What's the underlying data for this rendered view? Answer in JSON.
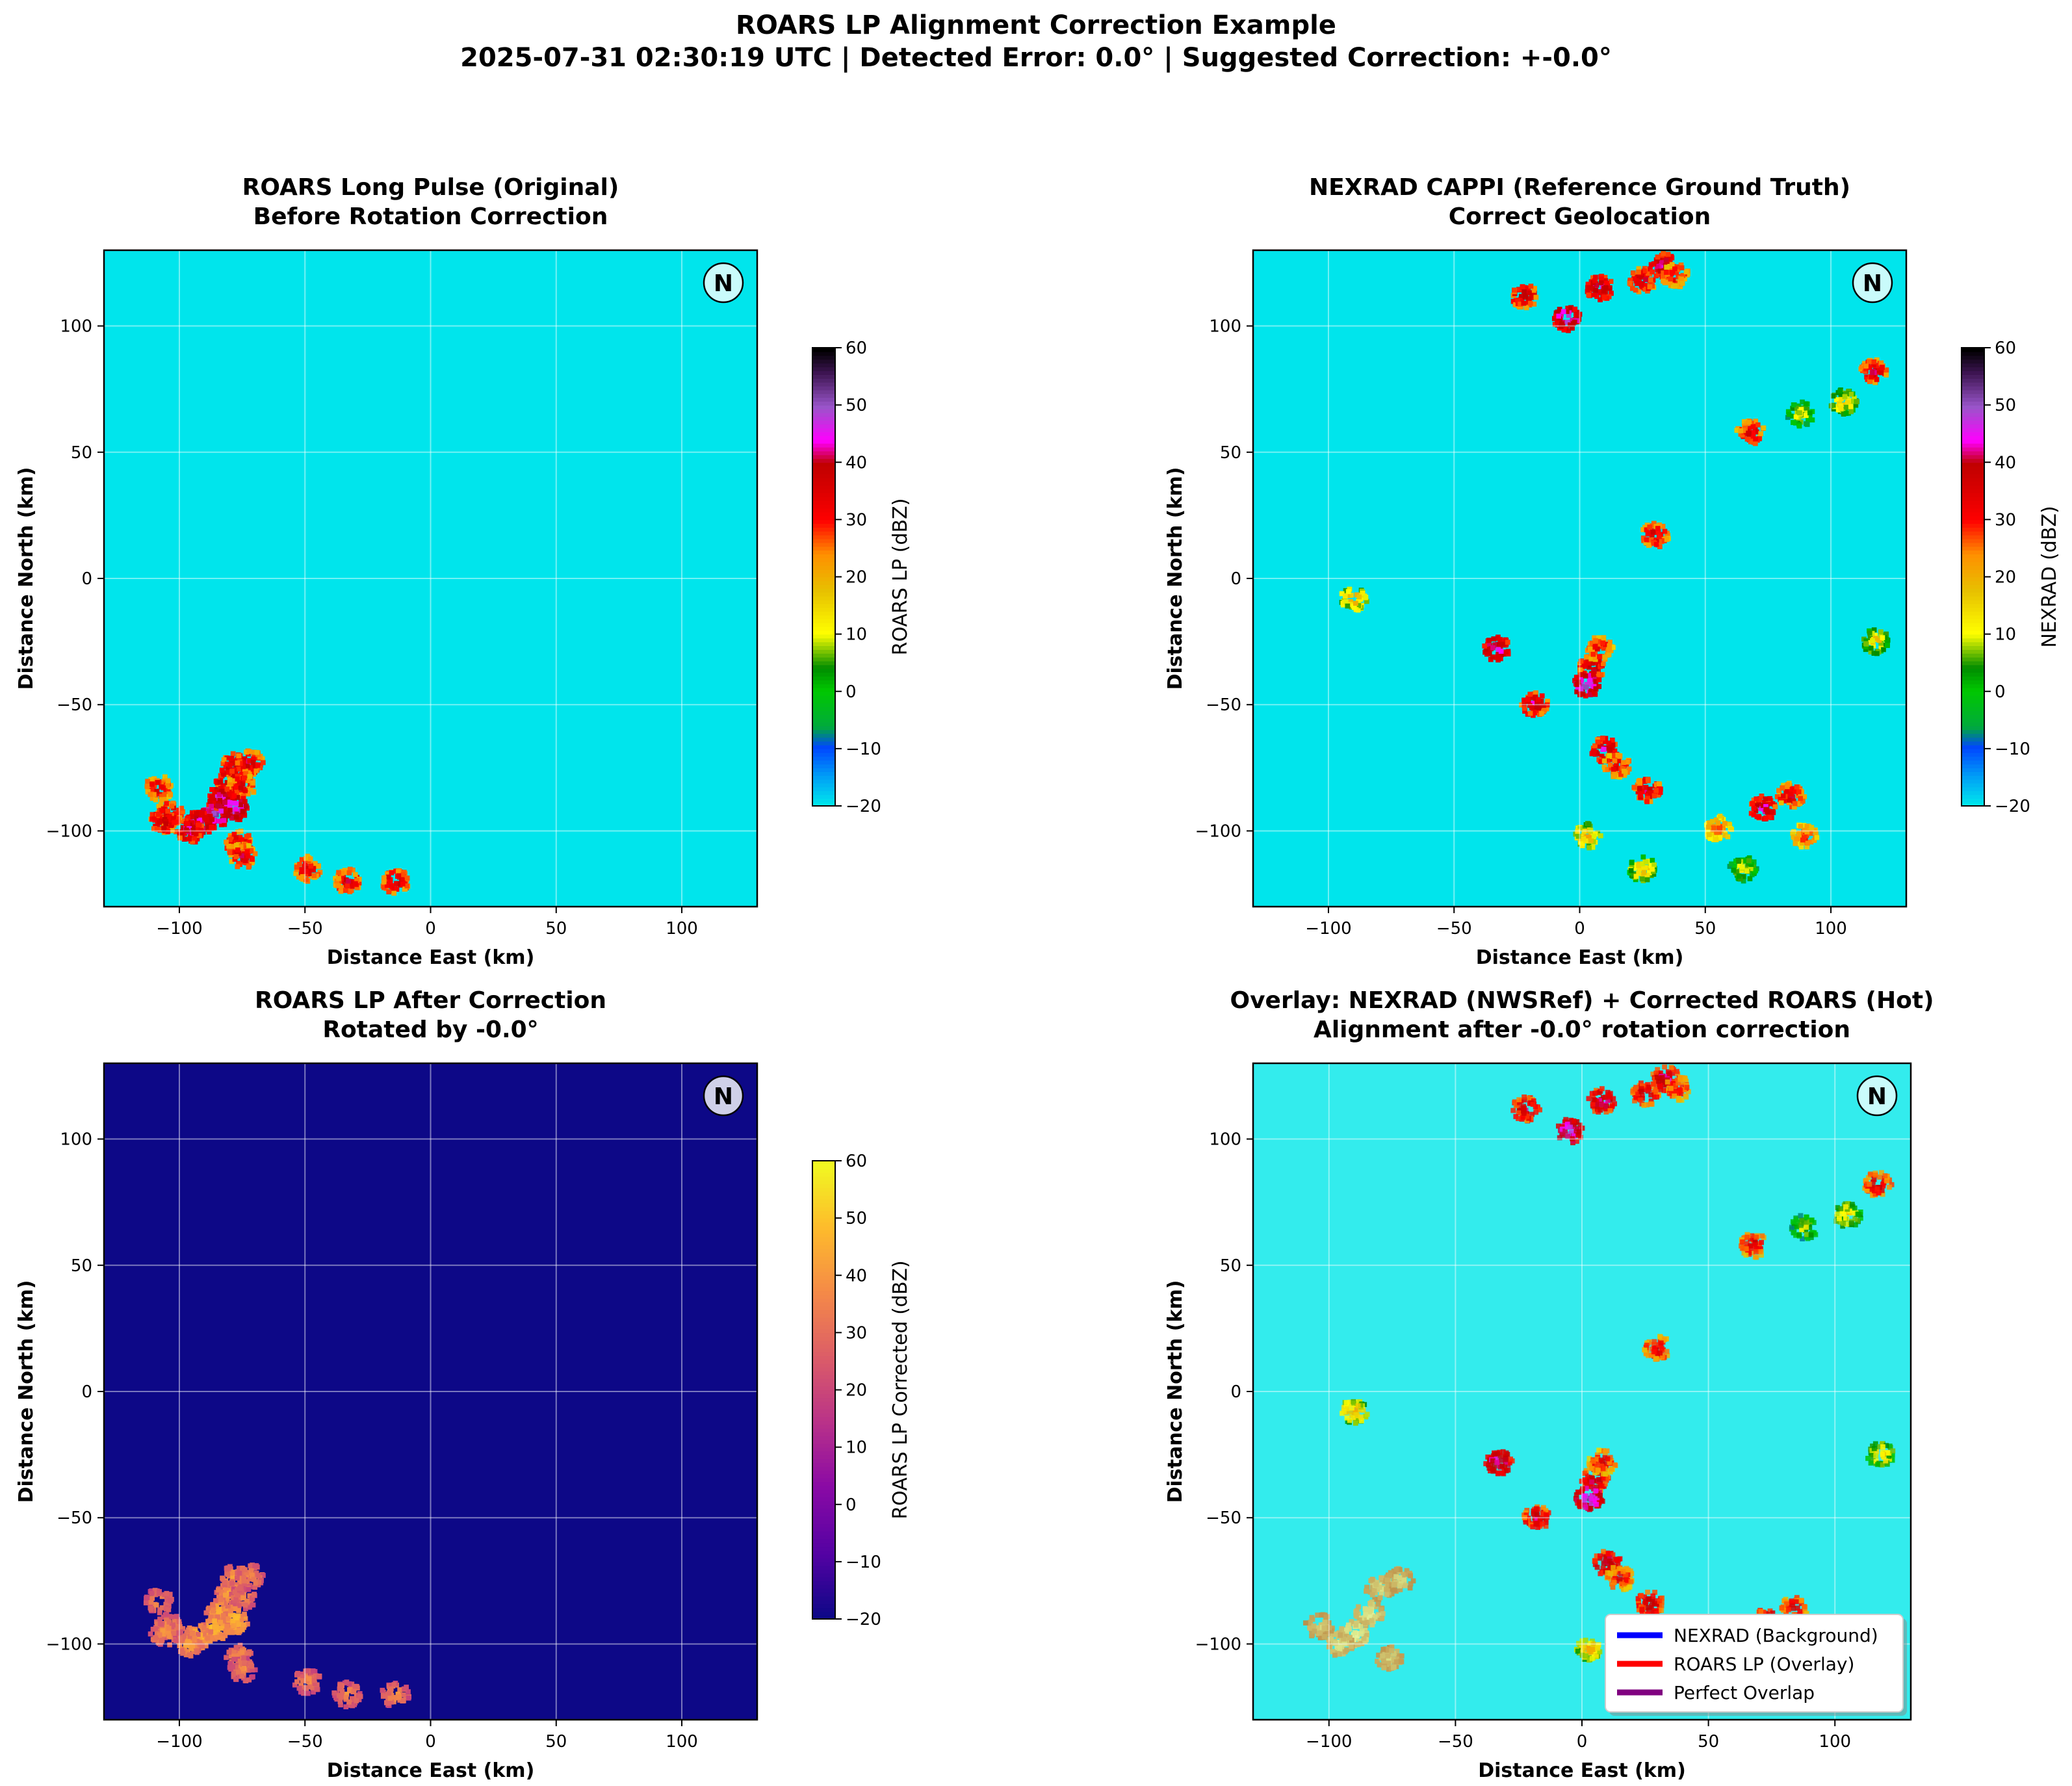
{
  "figure": {
    "title_line1": "ROARS LP Alignment Correction Example",
    "title_line2": "2025-07-31 02:30:19 UTC | Detected Error: 0.0° | Suggested Correction: +-0.0°"
  },
  "chart_data": [
    {
      "type": "heatmap",
      "title": "ROARS Long Pulse (Original)",
      "subtitle": "Before Rotation Correction",
      "xlabel": "Distance East (km)",
      "ylabel": "Distance North (km)",
      "xlim": [
        -130,
        130
      ],
      "ylim": [
        -130,
        130
      ],
      "xticks": [
        -100,
        -50,
        0,
        50,
        100
      ],
      "yticks": [
        -100,
        -50,
        0,
        50,
        100
      ],
      "grid": true,
      "background_color": "#00e5ec",
      "colormap": "NWSRef",
      "colorbar": {
        "label": "ROARS LP (dBZ)",
        "ticks": [
          -20,
          -10,
          0,
          10,
          20,
          30,
          40,
          50,
          60
        ],
        "range": [
          -20,
          60
        ]
      },
      "north_marker": "N",
      "echoes": [
        {
          "x": -78,
          "y": -74,
          "dbz": 42
        },
        {
          "x": -72,
          "y": -73,
          "dbz": 40
        },
        {
          "x": -80,
          "y": -80,
          "dbz": 44
        },
        {
          "x": -75,
          "y": -82,
          "dbz": 38
        },
        {
          "x": -84,
          "y": -87,
          "dbz": 46
        },
        {
          "x": -78,
          "y": -91,
          "dbz": 50
        },
        {
          "x": -86,
          "y": -94,
          "dbz": 52
        },
        {
          "x": -92,
          "y": -97,
          "dbz": 48
        },
        {
          "x": -96,
          "y": -100,
          "dbz": 44
        },
        {
          "x": -104,
          "y": -93,
          "dbz": 40
        },
        {
          "x": -106,
          "y": -96,
          "dbz": 42
        },
        {
          "x": -108,
          "y": -83,
          "dbz": 38
        },
        {
          "x": -76,
          "y": -105,
          "dbz": 40
        },
        {
          "x": -75,
          "y": -110,
          "dbz": 38
        },
        {
          "x": -49,
          "y": -115,
          "dbz": 38
        },
        {
          "x": -33,
          "y": -120,
          "dbz": 38
        },
        {
          "x": -14,
          "y": -120,
          "dbz": 40
        }
      ]
    },
    {
      "type": "heatmap",
      "title": "NEXRAD CAPPI (Reference Ground Truth)",
      "subtitle": "Correct Geolocation",
      "xlabel": "Distance East (km)",
      "ylabel": "Distance North (km)",
      "xlim": [
        -130,
        130
      ],
      "ylim": [
        -130,
        130
      ],
      "xticks": [
        -100,
        -50,
        0,
        50,
        100
      ],
      "yticks": [
        -100,
        -50,
        0,
        50,
        100
      ],
      "grid": true,
      "background_color": "#00e5ec",
      "colormap": "NWSRef",
      "colorbar": {
        "label": "NEXRAD (dBZ)",
        "ticks": [
          -20,
          -10,
          0,
          10,
          20,
          30,
          40,
          50,
          60
        ],
        "range": [
          -20,
          60
        ]
      },
      "north_marker": "N",
      "echoes": [
        {
          "x": -22,
          "y": 112,
          "dbz": 42
        },
        {
          "x": -5,
          "y": 103,
          "dbz": 50
        },
        {
          "x": 8,
          "y": 115,
          "dbz": 45
        },
        {
          "x": 25,
          "y": 118,
          "dbz": 40
        },
        {
          "x": 33,
          "y": 124,
          "dbz": 44
        },
        {
          "x": 38,
          "y": 120,
          "dbz": 36
        },
        {
          "x": 68,
          "y": 58,
          "dbz": 38
        },
        {
          "x": 88,
          "y": 65,
          "dbz": 12
        },
        {
          "x": 105,
          "y": 70,
          "dbz": 18
        },
        {
          "x": 117,
          "y": 82,
          "dbz": 40
        },
        {
          "x": 30,
          "y": 17,
          "dbz": 38
        },
        {
          "x": -90,
          "y": -8,
          "dbz": 22
        },
        {
          "x": -33,
          "y": -28,
          "dbz": 48
        },
        {
          "x": 5,
          "y": -35,
          "dbz": 42
        },
        {
          "x": 8,
          "y": -28,
          "dbz": 36
        },
        {
          "x": 3,
          "y": -42,
          "dbz": 52
        },
        {
          "x": -18,
          "y": -50,
          "dbz": 42
        },
        {
          "x": 10,
          "y": -68,
          "dbz": 44
        },
        {
          "x": 15,
          "y": -74,
          "dbz": 36
        },
        {
          "x": 27,
          "y": -84,
          "dbz": 42
        },
        {
          "x": 3,
          "y": -102,
          "dbz": 22
        },
        {
          "x": 55,
          "y": -99,
          "dbz": 28
        },
        {
          "x": 73,
          "y": -91,
          "dbz": 44
        },
        {
          "x": 90,
          "y": -102,
          "dbz": 32
        },
        {
          "x": 84,
          "y": -86,
          "dbz": 38
        },
        {
          "x": 118,
          "y": -25,
          "dbz": 18
        },
        {
          "x": 25,
          "y": -115,
          "dbz": 20
        },
        {
          "x": 65,
          "y": -115,
          "dbz": 14
        }
      ]
    },
    {
      "type": "heatmap",
      "title": "ROARS LP After Correction",
      "subtitle": "Rotated by -0.0°",
      "xlabel": "Distance East (km)",
      "ylabel": "Distance North (km)",
      "xlim": [
        -130,
        130
      ],
      "ylim": [
        -130,
        130
      ],
      "xticks": [
        -100,
        -50,
        0,
        50,
        100
      ],
      "yticks": [
        -100,
        -50,
        0,
        50,
        100
      ],
      "grid": true,
      "background_color": "#0d0887",
      "colormap": "plasma",
      "colorbar": {
        "label": "ROARS LP Corrected (dBZ)",
        "ticks": [
          -20,
          -10,
          0,
          10,
          20,
          30,
          40,
          50,
          60
        ],
        "range": [
          -20,
          60
        ]
      },
      "north_marker": "N",
      "echoes": [
        {
          "x": -78,
          "y": -74,
          "dbz": 42
        },
        {
          "x": -72,
          "y": -73,
          "dbz": 40
        },
        {
          "x": -80,
          "y": -80,
          "dbz": 44
        },
        {
          "x": -75,
          "y": -82,
          "dbz": 38
        },
        {
          "x": -84,
          "y": -87,
          "dbz": 46
        },
        {
          "x": -78,
          "y": -91,
          "dbz": 50
        },
        {
          "x": -86,
          "y": -94,
          "dbz": 52
        },
        {
          "x": -92,
          "y": -97,
          "dbz": 48
        },
        {
          "x": -96,
          "y": -100,
          "dbz": 44
        },
        {
          "x": -104,
          "y": -93,
          "dbz": 40
        },
        {
          "x": -106,
          "y": -96,
          "dbz": 42
        },
        {
          "x": -108,
          "y": -83,
          "dbz": 38
        },
        {
          "x": -76,
          "y": -105,
          "dbz": 40
        },
        {
          "x": -75,
          "y": -110,
          "dbz": 38
        },
        {
          "x": -49,
          "y": -115,
          "dbz": 38
        },
        {
          "x": -33,
          "y": -120,
          "dbz": 38
        },
        {
          "x": -14,
          "y": -120,
          "dbz": 40
        }
      ]
    },
    {
      "type": "heatmap",
      "title": "Overlay: NEXRAD (NWSRef) + Corrected ROARS (Hot)",
      "subtitle": "Alignment after -0.0° rotation correction",
      "xlabel": "Distance East (km)",
      "ylabel": "Distance North (km)",
      "xlim": [
        -130,
        130
      ],
      "ylim": [
        -130,
        130
      ],
      "xticks": [
        -100,
        -50,
        0,
        50,
        100
      ],
      "yticks": [
        -100,
        -50,
        0,
        50,
        100
      ],
      "grid": true,
      "background_color": "#33eced",
      "colormap": "NWSRef + hot overlay",
      "north_marker": "N",
      "legend": {
        "placement": "lower-right",
        "entries": [
          {
            "label": "NEXRAD (Background)",
            "color": "#0000ff"
          },
          {
            "label": "ROARS LP (Overlay)",
            "color": "#ff0000"
          },
          {
            "label": "Perfect Overlap",
            "color": "#800080"
          }
        ]
      },
      "overlay_echoes": [
        {
          "x": -80,
          "y": -78,
          "dbz": 42
        },
        {
          "x": -72,
          "y": -75,
          "dbz": 40
        },
        {
          "x": -84,
          "y": -88,
          "dbz": 46
        },
        {
          "x": -90,
          "y": -96,
          "dbz": 50
        },
        {
          "x": -96,
          "y": -100,
          "dbz": 44
        },
        {
          "x": -104,
          "y": -93,
          "dbz": 40
        },
        {
          "x": -76,
          "y": -106,
          "dbz": 40
        }
      ]
    }
  ]
}
